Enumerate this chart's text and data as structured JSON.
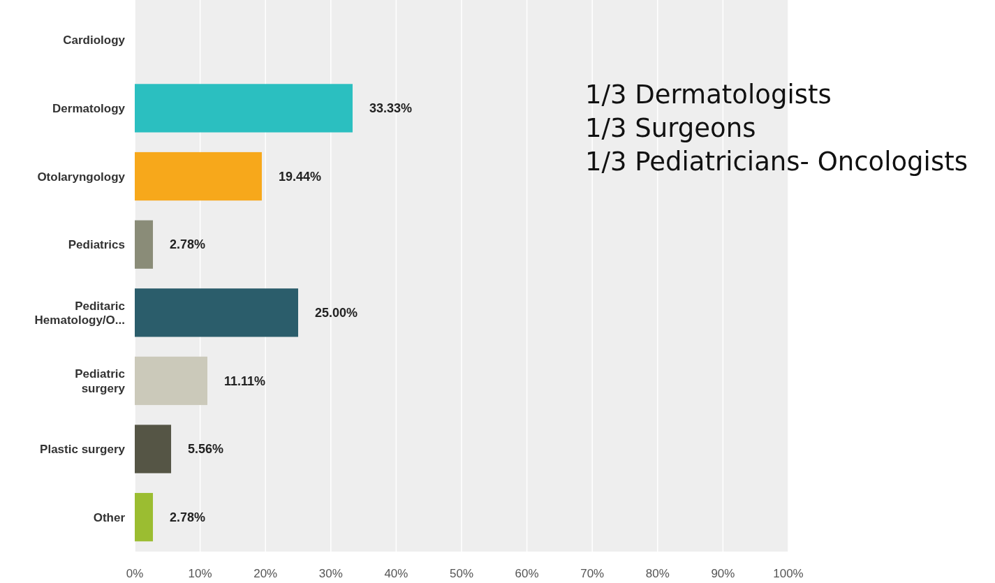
{
  "chart_data": {
    "type": "bar",
    "orientation": "horizontal",
    "categories": [
      "Cardiology",
      "Dermatology",
      "Otolaryngology",
      "Pediatrics",
      "Peditaric Hematology/O...",
      "Pediatric surgery",
      "Plastic surgery",
      "Other"
    ],
    "values": [
      0,
      33.33,
      19.44,
      2.78,
      25.0,
      11.11,
      5.56,
      2.78
    ],
    "colors": [
      "#2bbfc0",
      "#2bbfc0",
      "#f7a81b",
      "#8a8c78",
      "#2b5d6b",
      "#cbc9ba",
      "#555545",
      "#9bbd31"
    ],
    "value_labels": [
      null,
      "33.33%",
      "19.44%",
      "2.78%",
      "25.00%",
      "11.11%",
      "5.56%",
      "2.78%"
    ],
    "xlim": [
      0,
      100
    ],
    "xticks": [
      {
        "value": 0,
        "label": "0%"
      },
      {
        "value": 10,
        "label": "10%"
      },
      {
        "value": 20,
        "label": "20%"
      },
      {
        "value": 30,
        "label": "30%"
      },
      {
        "value": 40,
        "label": "40%"
      },
      {
        "value": 50,
        "label": "50%"
      },
      {
        "value": 60,
        "label": "60%"
      },
      {
        "value": 70,
        "label": "70%"
      },
      {
        "value": 80,
        "label": "80%"
      },
      {
        "value": 90,
        "label": "90%"
      },
      {
        "value": 100,
        "label": "100%"
      }
    ],
    "grid": "x",
    "annotations": [
      "1/3 Dermatologists",
      "1/3 Surgeons",
      "1/3 Pediatricians- Oncologists"
    ]
  }
}
